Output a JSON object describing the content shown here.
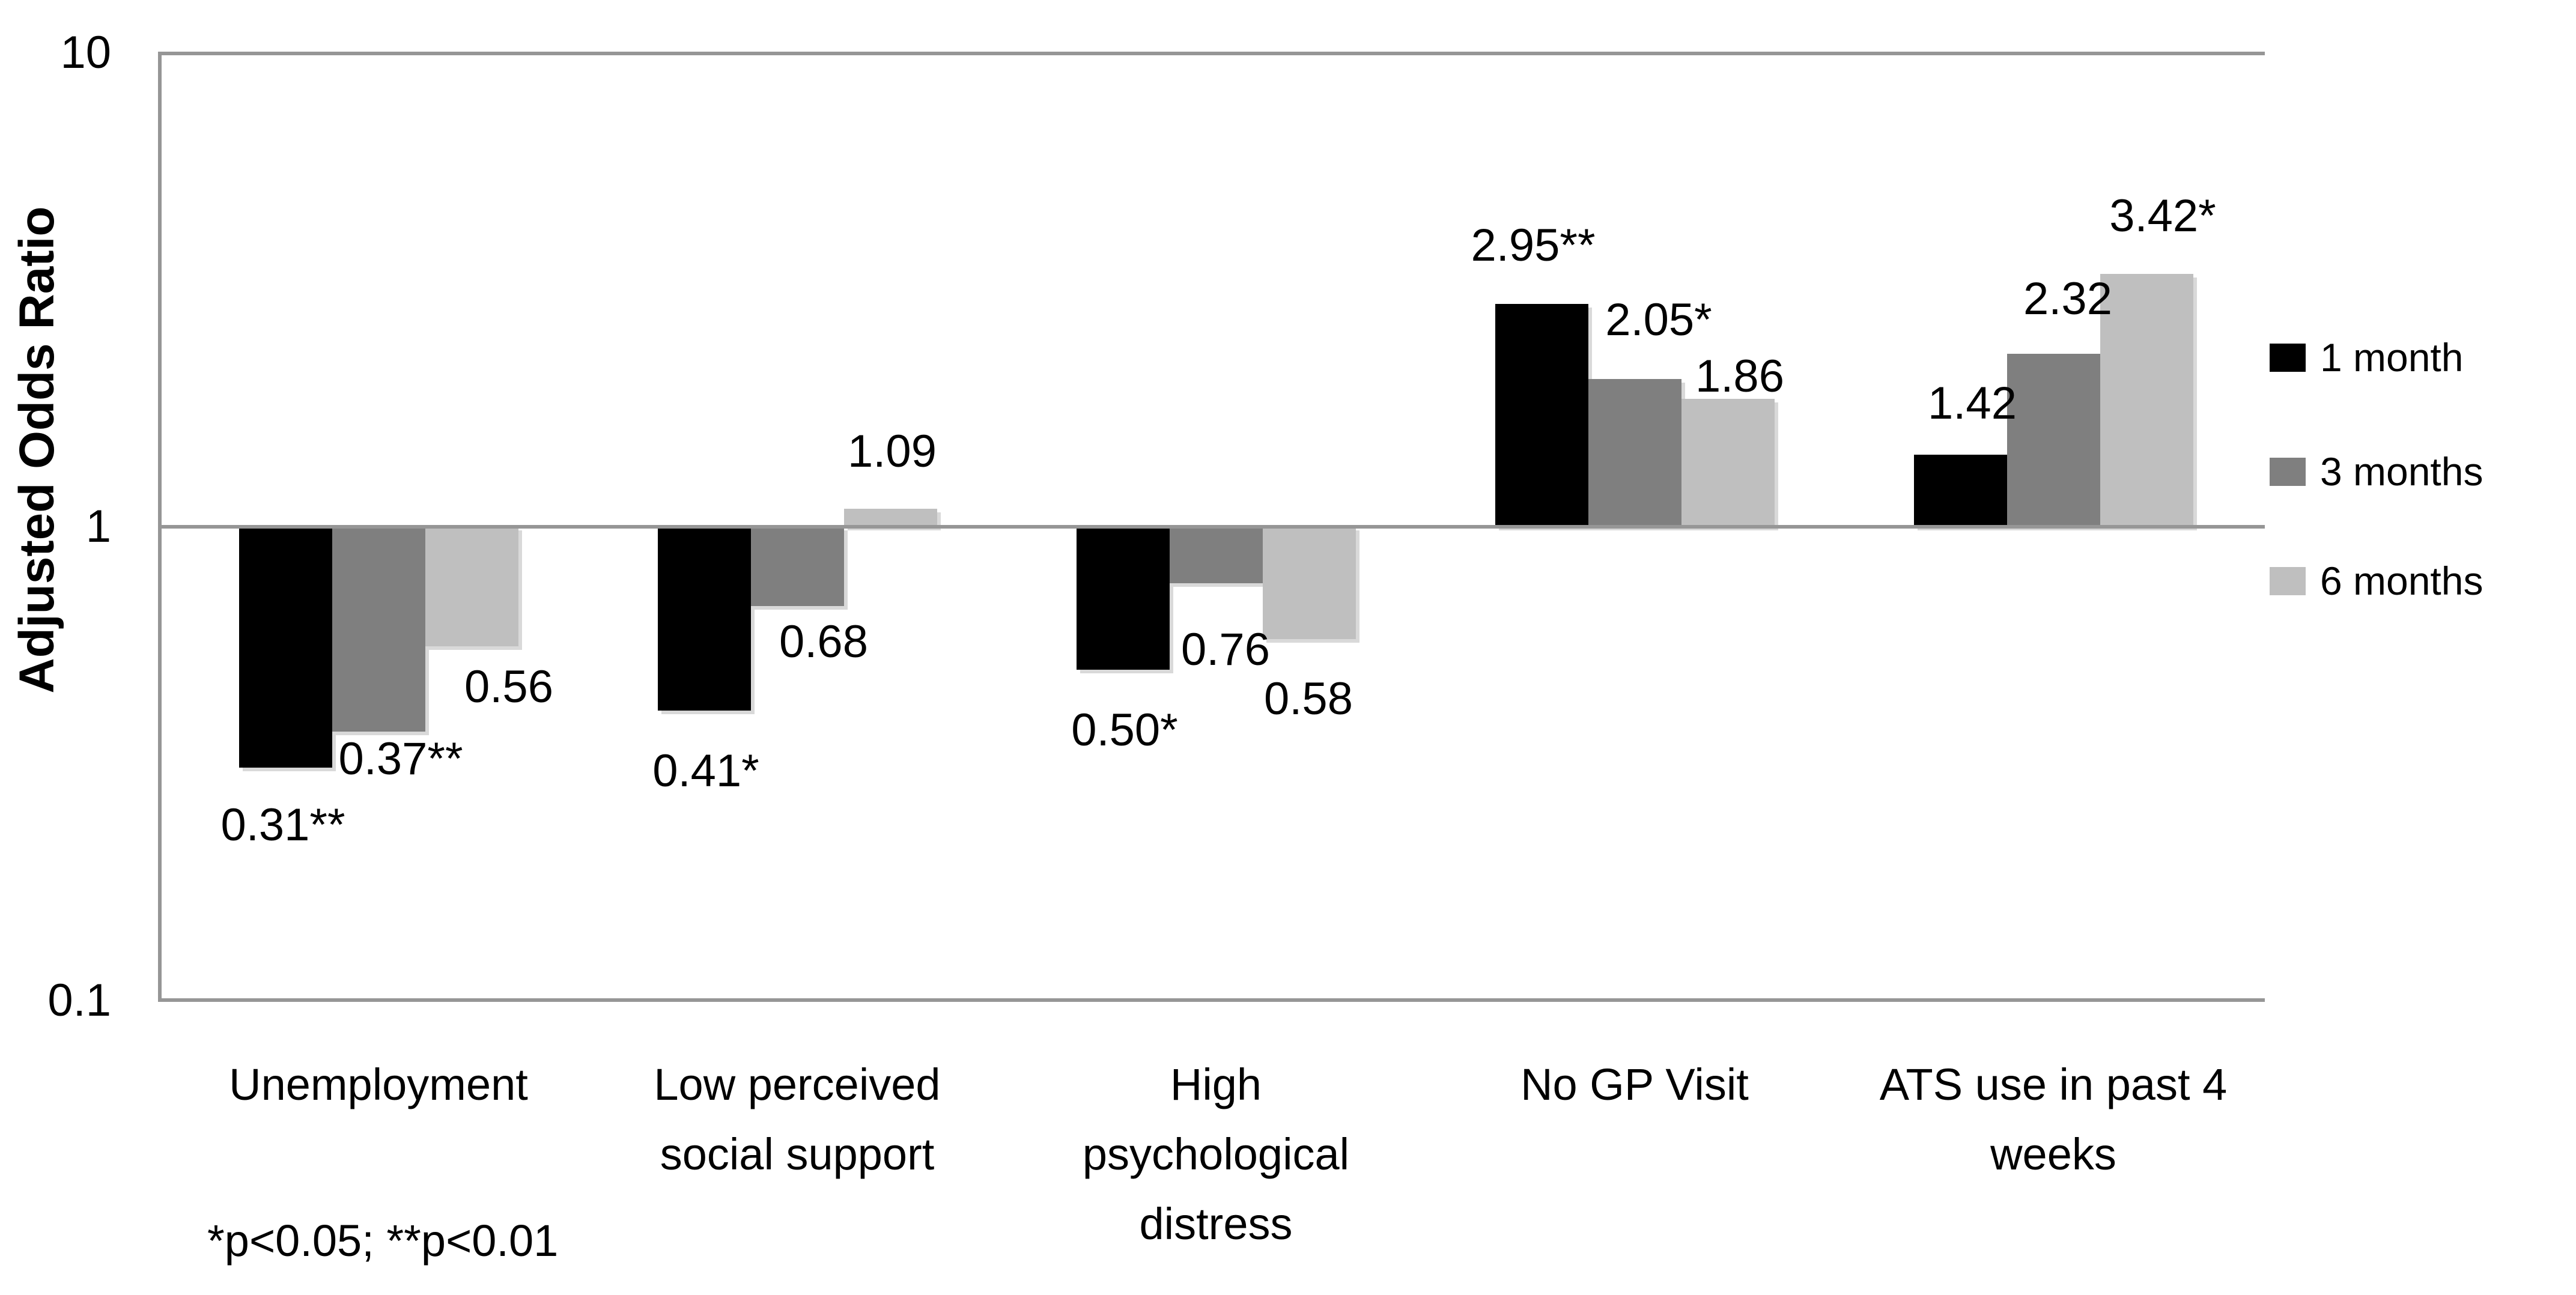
{
  "figure": {
    "background": "#ffffff"
  },
  "chart_data": {
    "type": "bar",
    "title": "",
    "ylabel": "Adjusted Odds Ratio",
    "xlabel": "",
    "y_scale": "log10",
    "ylim": [
      0.1,
      10
    ],
    "yticks": [
      {
        "value": 10,
        "label": "10"
      },
      {
        "value": 1,
        "label": "1"
      },
      {
        "value": 0.1,
        "label": "0.1"
      }
    ],
    "baseline": 1,
    "grid": "off",
    "legend_position": "right",
    "categories": [
      "Unemployment",
      "Low perceived\nsocial support",
      "High\npsychological\ndistress",
      "No GP Visit",
      "ATS use in past 4\nweeks"
    ],
    "series": [
      {
        "name": "1 month",
        "color": "#000000",
        "values": [
          0.31,
          0.41,
          0.5,
          2.95,
          1.42
        ],
        "point_labels": [
          "0.31**",
          "0.41*",
          "0.50*",
          "2.95**",
          "1.42"
        ]
      },
      {
        "name": "3 months",
        "color": "#7f7f7f",
        "values": [
          0.37,
          0.68,
          0.76,
          2.05,
          2.32
        ],
        "point_labels": [
          "0.37**",
          "0.68",
          "0.76",
          "2.05*",
          "2.32"
        ]
      },
      {
        "name": "6 months",
        "color": "#bfbfbf",
        "values": [
          0.56,
          1.09,
          0.58,
          1.86,
          3.42
        ],
        "point_labels": [
          "0.56",
          "1.09",
          "0.58",
          "1.86",
          "3.42*"
        ]
      }
    ],
    "footnote": "*p<0.05; **p<0.01",
    "axis_color": "#969696",
    "bar_shadow_color": "#d9d9d9"
  }
}
